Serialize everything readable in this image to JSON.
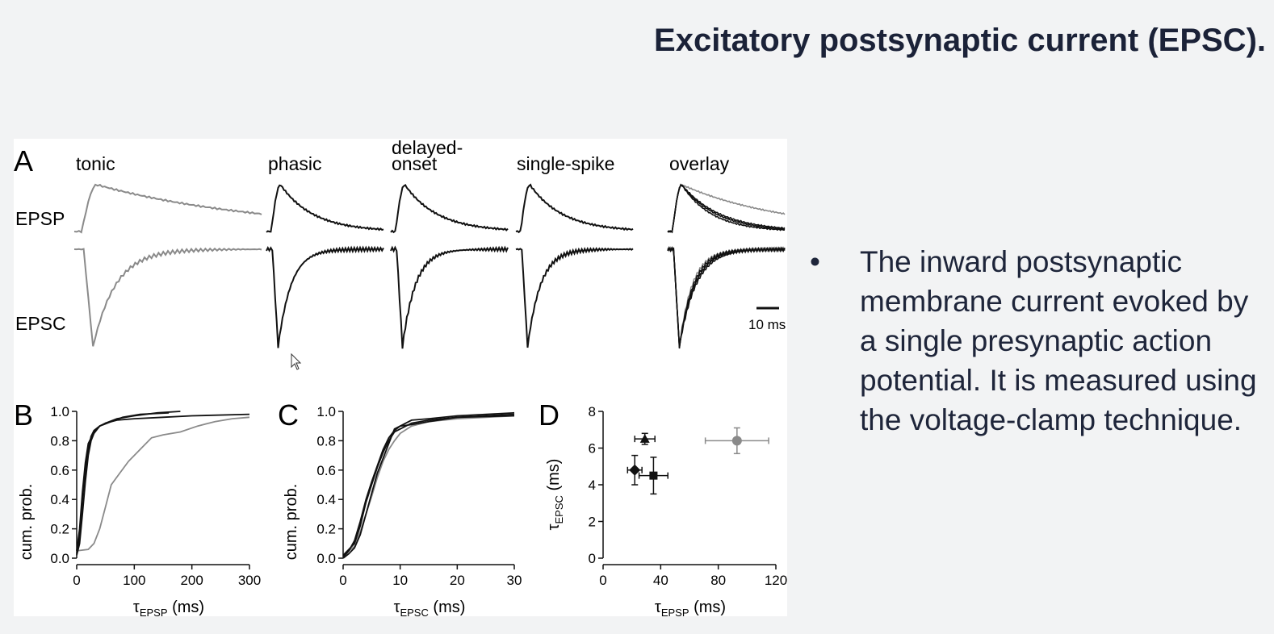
{
  "slide": {
    "title": "Excitatory postsynaptic current (EPSC).",
    "bullet_symbol": "•",
    "bullet_text": "The inward postsynaptic membrane current evoked by a single presynaptic action potential. It is measured using the voltage-clamp technique."
  },
  "figure": {
    "panel_a": {
      "label": "A",
      "columns": [
        "tonic",
        "phasic",
        "delayed-\nonset",
        "single-spike",
        "overlay"
      ],
      "row_labels": {
        "epsp": "EPSP",
        "epsc": "EPSC"
      },
      "scale_bar": "10 ms"
    },
    "panel_b": {
      "label": "B",
      "ylabel": "cum. prob.",
      "xlabel_main": "τ",
      "xlabel_sub": "EPSP",
      "xlabel_unit": " (ms)"
    },
    "panel_c": {
      "label": "C",
      "ylabel": "cum. prob.",
      "xlabel_main": "τ",
      "xlabel_sub": "EPSC",
      "xlabel_unit": " (ms)"
    },
    "panel_d": {
      "label": "D",
      "ylabel_main": "τ",
      "ylabel_sub": "EPSC",
      "ylabel_unit": " (ms)",
      "xlabel_main": "τ",
      "xlabel_sub": "EPSP",
      "xlabel_unit": " (ms)"
    },
    "colors": {
      "black": "#111111",
      "gray": "#8a8a8a"
    }
  },
  "chart_data": [
    {
      "type": "line",
      "panel": "B",
      "ylabel": "cum. prob.",
      "xlabel": "τEPSP (ms)",
      "xlim": [
        0,
        300
      ],
      "ylim": [
        0,
        1.0
      ],
      "xticks": [
        0,
        100,
        200,
        300
      ],
      "yticks": [
        0.0,
        0.2,
        0.4,
        0.6,
        0.8,
        1.0
      ],
      "series": [
        {
          "color": "gray",
          "x": [
            0,
            20,
            30,
            40,
            50,
            60,
            75,
            90,
            110,
            130,
            150,
            180,
            210,
            240,
            270,
            300
          ],
          "y": [
            0.05,
            0.06,
            0.1,
            0.2,
            0.35,
            0.5,
            0.58,
            0.66,
            0.74,
            0.82,
            0.84,
            0.86,
            0.9,
            0.93,
            0.95,
            0.96
          ]
        },
        {
          "color": "black",
          "x": [
            0,
            5,
            10,
            15,
            20,
            25,
            30,
            40,
            50,
            70,
            100,
            140,
            180
          ],
          "y": [
            0.02,
            0.1,
            0.3,
            0.52,
            0.7,
            0.8,
            0.85,
            0.9,
            0.92,
            0.95,
            0.97,
            0.99,
            1.0
          ]
        },
        {
          "color": "black",
          "x": [
            0,
            5,
            10,
            15,
            20,
            25,
            30,
            40,
            50,
            70,
            100,
            150,
            200,
            300
          ],
          "y": [
            0.03,
            0.15,
            0.4,
            0.6,
            0.74,
            0.83,
            0.87,
            0.9,
            0.92,
            0.94,
            0.95,
            0.96,
            0.97,
            0.98
          ]
        },
        {
          "color": "black",
          "x": [
            0,
            5,
            10,
            15,
            20,
            30,
            40,
            60,
            80,
            110,
            160
          ],
          "y": [
            0.05,
            0.2,
            0.45,
            0.65,
            0.78,
            0.86,
            0.9,
            0.93,
            0.96,
            0.98,
            0.99
          ]
        }
      ]
    },
    {
      "type": "line",
      "panel": "C",
      "ylabel": "cum. prob.",
      "xlabel": "τEPSC (ms)",
      "xlim": [
        0,
        30
      ],
      "ylim": [
        0,
        1.0
      ],
      "xticks": [
        0,
        10,
        20,
        30
      ],
      "yticks": [
        0.0,
        0.2,
        0.4,
        0.6,
        0.8,
        1.0
      ],
      "series": [
        {
          "color": "gray",
          "x": [
            0,
            1,
            2,
            3,
            4,
            5,
            6,
            7,
            8,
            9,
            10,
            12,
            15,
            20,
            25,
            30
          ],
          "y": [
            0.0,
            0.05,
            0.08,
            0.18,
            0.3,
            0.42,
            0.55,
            0.66,
            0.74,
            0.8,
            0.85,
            0.9,
            0.93,
            0.95,
            0.96,
            0.97
          ]
        },
        {
          "color": "black",
          "x": [
            0,
            1,
            2,
            3,
            4,
            5,
            6,
            7,
            8,
            9,
            10,
            12,
            15,
            20,
            30
          ],
          "y": [
            0.02,
            0.06,
            0.1,
            0.22,
            0.38,
            0.5,
            0.62,
            0.72,
            0.8,
            0.86,
            0.88,
            0.92,
            0.94,
            0.96,
            0.97
          ]
        },
        {
          "color": "black",
          "x": [
            0,
            1,
            2,
            3,
            4,
            5,
            6,
            7,
            8,
            9,
            10,
            12,
            15,
            20,
            30
          ],
          "y": [
            0.0,
            0.03,
            0.07,
            0.16,
            0.3,
            0.44,
            0.58,
            0.68,
            0.78,
            0.88,
            0.9,
            0.94,
            0.95,
            0.97,
            0.99
          ]
        },
        {
          "color": "black",
          "x": [
            0,
            1,
            2,
            3,
            4,
            5,
            6,
            7,
            8,
            9,
            10,
            12,
            15,
            20,
            30
          ],
          "y": [
            0.01,
            0.05,
            0.12,
            0.25,
            0.4,
            0.52,
            0.63,
            0.74,
            0.82,
            0.87,
            0.9,
            0.91,
            0.93,
            0.96,
            0.98
          ]
        }
      ]
    },
    {
      "type": "scatter",
      "panel": "D",
      "ylabel": "τEPSC (ms)",
      "xlabel": "τEPSP (ms)",
      "xlim": [
        0,
        120
      ],
      "ylim": [
        0,
        8
      ],
      "xticks": [
        0,
        40,
        80,
        120
      ],
      "yticks": [
        0,
        2,
        4,
        6,
        8
      ],
      "points": [
        {
          "marker": "triangle",
          "color": "black",
          "x": 29,
          "y": 6.5,
          "xerr": 7,
          "yerr": 0.3
        },
        {
          "marker": "diamond",
          "color": "black",
          "x": 22,
          "y": 4.8,
          "xerr": 5,
          "yerr": 0.8
        },
        {
          "marker": "square",
          "color": "black",
          "x": 35,
          "y": 4.5,
          "xerr": 10,
          "yerr": 1.0
        },
        {
          "marker": "circle",
          "color": "gray",
          "x": 93,
          "y": 6.4,
          "xerr": 22,
          "yerr": 0.7
        }
      ]
    }
  ]
}
